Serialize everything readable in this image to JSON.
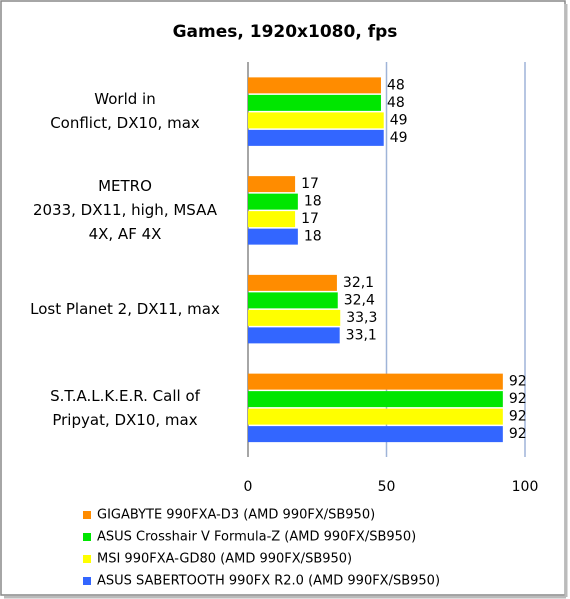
{
  "chart_data": {
    "type": "bar",
    "orientation": "horizontal",
    "title": "Games, 1920x1080, fps",
    "categories": [
      "World in\nConflict, DX10, max",
      "METRO\n2033, DX11, high, MSAA\n4X, AF 4X",
      "Lost Planet 2, DX11, max",
      "S.T.A.L.K.E.R.  Call of\nPripyat, DX10, max"
    ],
    "series": [
      {
        "name": "GIGABYTE 990FXA-D3 (AMD 990FX/SB950)",
        "color": "#ff8c00",
        "values": [
          48,
          17,
          32.1,
          92
        ],
        "value_labels": [
          "48",
          "17",
          "32,1",
          "92"
        ]
      },
      {
        "name": "ASUS Crosshair V Formula-Z (AMD 990FX/SB950)",
        "color": "#00e600",
        "values": [
          48,
          18,
          32.4,
          92
        ],
        "value_labels": [
          "48",
          "18",
          "32,4",
          "92"
        ]
      },
      {
        "name": "MSI 990FXA-GD80 (AMD 990FX/SB950)",
        "color": "#ffff00",
        "values": [
          49,
          17,
          33.3,
          92
        ],
        "value_labels": [
          "49",
          "17",
          "33,3",
          "92"
        ]
      },
      {
        "name": "ASUS SABERTOOTH 990FX R2.0 (AMD 990FX/SB950)",
        "color": "#3366ff",
        "values": [
          49,
          18,
          33.1,
          92
        ],
        "value_labels": [
          "49",
          "18",
          "33,1",
          "92"
        ]
      }
    ],
    "xlim": [
      0,
      100
    ],
    "xticks": [
      0,
      50,
      100
    ],
    "grid": true,
    "legend": "bottom"
  }
}
